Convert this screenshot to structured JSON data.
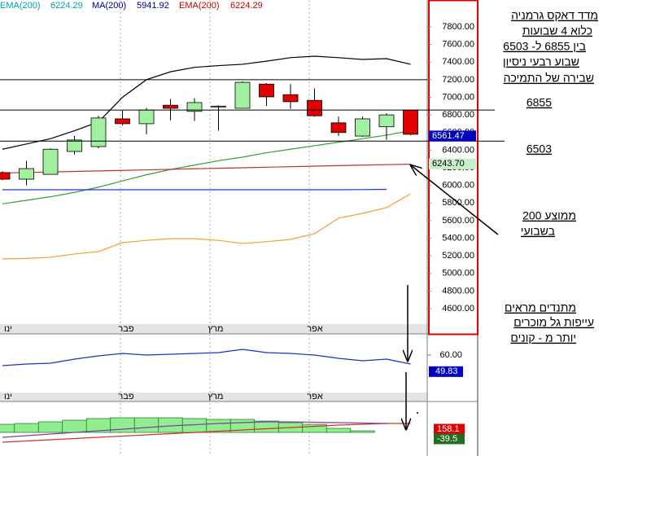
{
  "chart_data": {
    "type": "candlestick",
    "indicators": [
      {
        "name": "EMA(200)",
        "value": 6224.29,
        "color": "#00a0b0"
      },
      {
        "name": "MA(200)",
        "value": 5941.92,
        "color": "#000080"
      },
      {
        "name": "EMA(200)",
        "value": 6224.29,
        "color": "#c00000"
      }
    ],
    "x_labels": [
      "ינו",
      "פבר",
      "מרץ",
      "אפר"
    ],
    "open": [
      6145,
      6070,
      6125,
      6385,
      6440,
      6755,
      6700,
      6910,
      6840,
      6890,
      6875,
      7150,
      7030,
      6965,
      6710,
      6560,
      6665,
      6855
    ],
    "close": [
      6070,
      6190,
      6410,
      6515,
      6765,
      6700,
      6855,
      6875,
      6940,
      6900,
      7170,
      7005,
      6950,
      6790,
      6600,
      6755,
      6800,
      6580
    ],
    "high": [
      6160,
      6280,
      6420,
      6560,
      6790,
      6850,
      6880,
      6980,
      6990,
      6910,
      7180,
      7160,
      7150,
      7100,
      6780,
      6780,
      6820,
      6860
    ],
    "low": [
      6060,
      6000,
      6120,
      6350,
      6420,
      6680,
      6580,
      6740,
      6730,
      6620,
      6870,
      6900,
      6870,
      6780,
      6560,
      6550,
      6520,
      6570
    ],
    "up_color": "#a0f0a0",
    "down_color": "#e00000",
    "series": [
      {
        "color": "#000000",
        "values": [
          6410,
          6470,
          6530,
          6620,
          6720,
          7000,
          7200,
          7290,
          7340,
          7360,
          7375,
          7410,
          7450,
          7467,
          7450,
          7430,
          7439,
          7375
        ]
      },
      {
        "color": "#30a030",
        "values": [
          5790,
          5830,
          5870,
          5920,
          5980,
          6050,
          6120,
          6180,
          6230,
          6280,
          6320,
          6370,
          6410,
          6450,
          6490,
          6530,
          6570,
          6620
        ]
      },
      {
        "color": "#c03030",
        "values": [
          6140,
          6146,
          6152,
          6158,
          6164,
          6170,
          6176,
          6182,
          6188,
          6194,
          6200,
          6206,
          6212,
          6218,
          6224,
          6230,
          6235,
          6240
        ]
      },
      {
        "color": "#2030e0",
        "values": [
          5950,
          5950,
          5950,
          5950,
          5950,
          5950,
          5950,
          5950,
          5950,
          5950,
          5950,
          5950,
          5950,
          5950,
          5950,
          5952,
          5955,
          null
        ]
      },
      {
        "color": "#f0a030",
        "values": [
          5165,
          5170,
          5183,
          5220,
          5248,
          5349,
          5375,
          5395,
          5395,
          5375,
          5340,
          5360,
          5386,
          5451,
          5627,
          5682,
          5747,
          5904
        ]
      }
    ],
    "hlines": [
      7200,
      6855,
      6503
    ],
    "ylim": [
      4424,
      8105
    ],
    "yticks": [
      {
        "value": 7800,
        "label": "7800.00"
      },
      {
        "value": 7600,
        "label": "7600.00"
      },
      {
        "value": 7400,
        "label": "7400.00"
      },
      {
        "value": 7200,
        "label": "7200.00"
      },
      {
        "value": 7000,
        "label": "7000.00"
      },
      {
        "value": 6800,
        "label": "6800.00"
      },
      {
        "value": 6600,
        "label": "6600.00"
      },
      {
        "value": 6400,
        "label": "6400.00"
      },
      {
        "value": 6200,
        "label": "6200.00"
      },
      {
        "value": 6000,
        "label": "6000.00"
      },
      {
        "value": 5800,
        "label": "5800.00"
      },
      {
        "value": 5600,
        "label": "5600.00"
      },
      {
        "value": 5400,
        "label": "5400.00"
      },
      {
        "value": 5200,
        "label": "5200.00"
      },
      {
        "value": 5000,
        "label": "5000.00"
      },
      {
        "value": 4800,
        "label": "4800.00"
      },
      {
        "value": 4600,
        "label": "4600.00"
      }
    ],
    "price_tags": [
      {
        "value": 6561.47,
        "label": "6561.47",
        "color": "#0000c0",
        "text_color": "#ffffff"
      },
      {
        "value": 6243.7,
        "label": "6243.70",
        "color": "#c8f0c8",
        "text_color": "#000000"
      }
    ],
    "oscillator": {
      "color": "#2030c0",
      "values": [
        53.5,
        54.5,
        55,
        57.5,
        59.5,
        61,
        60,
        60.5,
        61,
        61.5,
        63.5,
        61.5,
        61,
        60,
        58,
        56.5,
        57.5,
        54.5
      ],
      "ylim": [
        37,
        72
      ],
      "yticks": [
        {
          "value": 60,
          "label": "60.00"
        }
      ],
      "tag": {
        "value": 49.83,
        "label": "49.83",
        "color": "#0000c0"
      }
    },
    "histogram": {
      "color": "#90ee90",
      "values": [
        100,
        110,
        130,
        150,
        170,
        180,
        180,
        180,
        170,
        160,
        160,
        140,
        120,
        100,
        50,
        20,
        null,
        null
      ],
      "lines": [
        {
          "color": "#d03030",
          "values": [
            -120,
            -105,
            -90,
            -75,
            -60,
            -45,
            -30,
            -15,
            0,
            15,
            30,
            45,
            60,
            75,
            90,
            100,
            110,
            110
          ]
        },
        {
          "color": "#8040a0",
          "values": [
            -60,
            -40,
            -20,
            0,
            20,
            40,
            60,
            80,
            95,
            110,
            120,
            130,
            130,
            125,
            120,
            115,
            110,
            null
          ]
        }
      ],
      "ylim": [
        -290,
        360
      ],
      "tags": [
        {
          "value": 158.1,
          "color": "#e00000"
        },
        {
          "value": -39.5,
          "color": "#207020"
        }
      ]
    },
    "notes": {
      "title_lines": [
        "מדד דאקס גרמניה",
        "כלוא 4 שבועות",
        "בין 6855 ל- 6503",
        "שבוע רבעי ניסיון",
        "שבירה של התמיכה"
      ],
      "level_labels": [
        "6855",
        "6503"
      ],
      "ma_lines": [
        "ממוצע 200",
        "בשבועי"
      ],
      "osc_lines": [
        "מתנדים מראים",
        "עייפות גל מוכרים",
        "יותר מ - קונים"
      ]
    }
  }
}
